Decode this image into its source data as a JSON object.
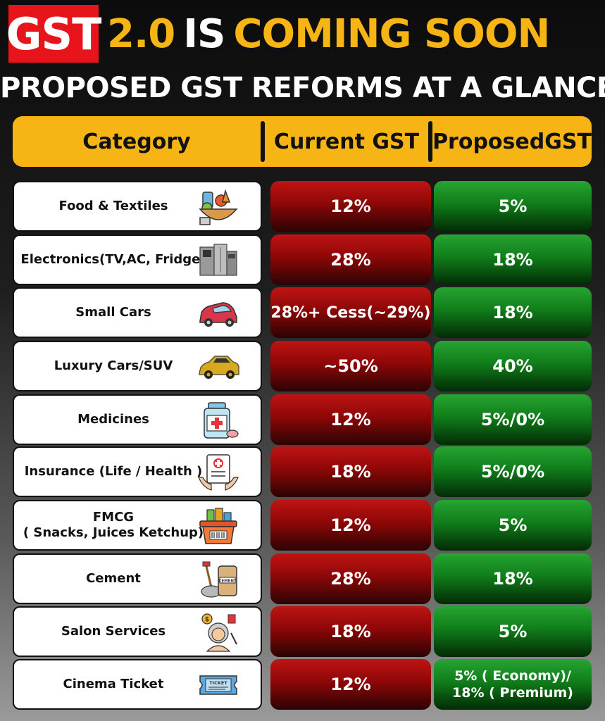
{
  "title": {
    "badge": "GST",
    "version": "2.0",
    "is": "IS",
    "rest": "COMING SOON"
  },
  "subtitle": "PROPOSED GST REFORMS AT A GLANCE",
  "table": {
    "headers": [
      "Category",
      "Current GST",
      "ProposedGST"
    ],
    "rows": [
      {
        "category": "Food & Textiles",
        "icon": "food-basket-icon",
        "current": "12%",
        "proposed": "5%"
      },
      {
        "category": "Electronics(TV,AC, Fridge)",
        "icon": "electronics-icon",
        "current": "28%",
        "proposed": "18%"
      },
      {
        "category": "Small Cars",
        "icon": "small-car-icon",
        "current": "28%+ Cess(~29%)",
        "proposed": "18%"
      },
      {
        "category": "Luxury Cars/SUV",
        "icon": "luxury-car-icon",
        "current": "~50%",
        "proposed": "40%"
      },
      {
        "category": "Medicines",
        "icon": "medicine-bottle-icon",
        "current": "12%",
        "proposed": "5%/0%"
      },
      {
        "category": "Insurance (Life / Health )",
        "icon": "insurance-document-icon",
        "current": "18%",
        "proposed": "5%/0%"
      },
      {
        "category_line1": "FMCG",
        "category_line2": "( Snacks, Juices Ketchup)",
        "icon": "grocery-basket-icon",
        "current": "12%",
        "proposed": "5%"
      },
      {
        "category": "Cement",
        "icon": "cement-bag-icon",
        "current": "28%",
        "proposed": "18%"
      },
      {
        "category": "Salon Services",
        "icon": "salon-icon",
        "current": "18%",
        "proposed": "5%"
      },
      {
        "category": "Cinema Ticket",
        "icon": "ticket-icon",
        "current": "12%",
        "proposed_line1": "5% ( Economy)/",
        "proposed_line2": "18% ( Premium)"
      }
    ]
  },
  "colors": {
    "accent_yellow": "#f7b515",
    "badge_red": "#e8141b",
    "current_red": "#8d0707",
    "proposed_green": "#107d1a"
  }
}
